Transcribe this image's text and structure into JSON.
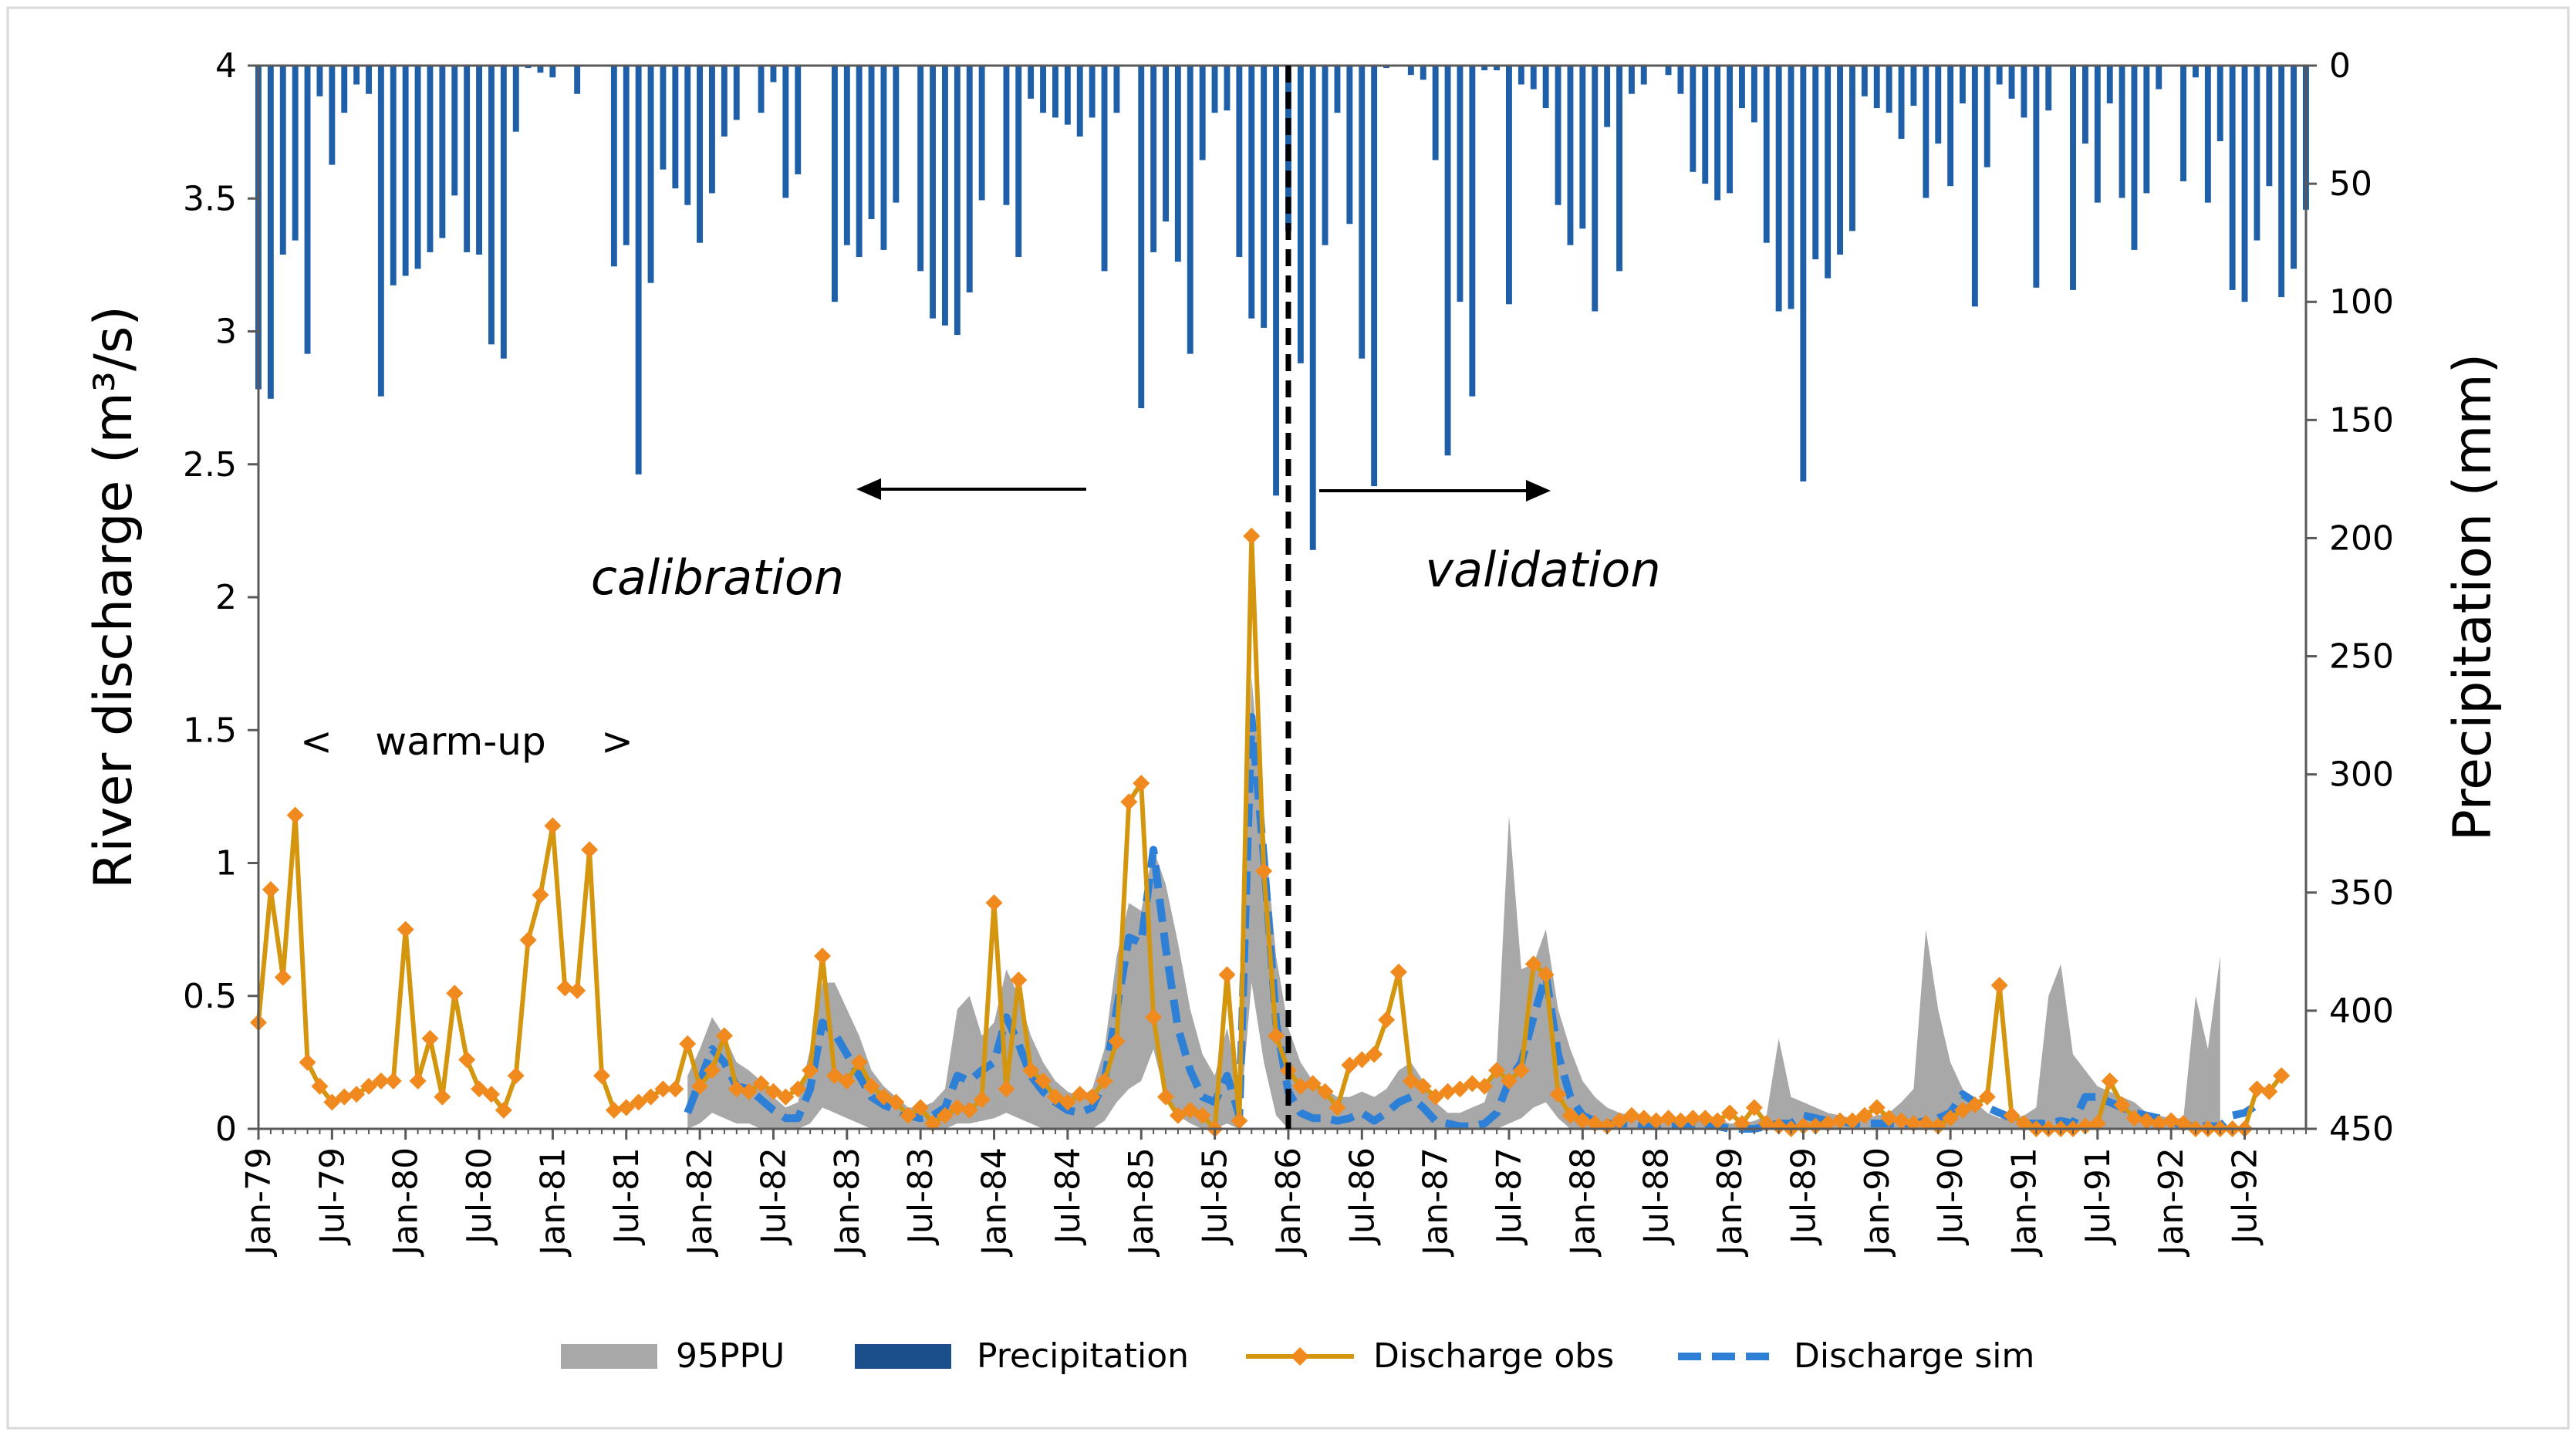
{
  "chart_data": {
    "type": "line",
    "xlabel": "",
    "ylabel_left": "River discharge (m³/s)",
    "ylabel_right": "Precipitation (mm)",
    "ylim_left": [
      0,
      4
    ],
    "ylim_right_inverted": [
      0,
      450
    ],
    "left_ticks": [
      "0",
      "0.5",
      "1",
      "1.5",
      "2",
      "2.5",
      "3",
      "3.5",
      "4"
    ],
    "right_ticks": [
      "0",
      "50",
      "100",
      "150",
      "200",
      "250",
      "300",
      "350",
      "400",
      "450"
    ],
    "x_tick_labels": [
      "Jan-79",
      "Jul-79",
      "Jan-80",
      "Jul-80",
      "Jan-81",
      "Jul-81",
      "Jan-82",
      "Jul-82",
      "Jan-83",
      "Jul-83",
      "Jan-84",
      "Jul-84",
      "Jan-85",
      "Jul-85",
      "Jan-86",
      "Jul-86",
      "Jan-87",
      "Jul-87",
      "Jan-88",
      "Jul-88",
      "Jan-89",
      "Jul-89",
      "Jan-90",
      "Jul-90",
      "Jan-91",
      "Jul-91",
      "Jan-92",
      "Jul-92"
    ],
    "n_months": 168,
    "start_month": "Jan-79",
    "grid": false,
    "legend_position": "bottom",
    "legend": [
      "95PPU",
      "Precipitation",
      "Discharge obs",
      "Discharge sim"
    ],
    "annotations": {
      "calibration": "calibration",
      "validation": "validation",
      "warmup": "warm-up",
      "warmup_left": "<",
      "warmup_right": ">"
    },
    "split_month": "Jan-86",
    "colors": {
      "precip": "#1f5fa8",
      "obs": "#d4960f",
      "obs_marker": "#f08a1e",
      "sim": "#2e7fd6",
      "band": "#a8a8a8",
      "legend_precip": "#1b4f8c"
    },
    "series": {
      "precipitation_mm": [
        137,
        141,
        80,
        74,
        122,
        13,
        42,
        20,
        8,
        12,
        140,
        93,
        89,
        86,
        79,
        73,
        55,
        79,
        80,
        118,
        124,
        28,
        1,
        3,
        5,
        0,
        12,
        0,
        0,
        85,
        76,
        173,
        92,
        44,
        52,
        59,
        75,
        54,
        30,
        23,
        0,
        20,
        7,
        56,
        46,
        0,
        0,
        100,
        76,
        81,
        65,
        78,
        58,
        0,
        87,
        107,
        110,
        114,
        96,
        57,
        0,
        59,
        81,
        14,
        20,
        22,
        25,
        30,
        22,
        87,
        20,
        0,
        145,
        79,
        66,
        83,
        122,
        40,
        20,
        19,
        81,
        107,
        111,
        182,
        70,
        126,
        205,
        76,
        20,
        67,
        124,
        178,
        1,
        0,
        4,
        6,
        40,
        165,
        100,
        140,
        2,
        2,
        101,
        8,
        10,
        18,
        59,
        76,
        69,
        104,
        26,
        87,
        12,
        8,
        0,
        4,
        12,
        45,
        50,
        57,
        54,
        18,
        24,
        75,
        104,
        103,
        176,
        82,
        90,
        80,
        70,
        13,
        18,
        20,
        31,
        17,
        56,
        33,
        51,
        16,
        102,
        43,
        8,
        14,
        22,
        94,
        19,
        0,
        95,
        33,
        58,
        16,
        56,
        78,
        54,
        10,
        0,
        49,
        5,
        58,
        32,
        95,
        100,
        74,
        51,
        98,
        86,
        61
      ],
      "discharge_obs": [
        0.4,
        0.9,
        0.57,
        1.18,
        0.25,
        0.16,
        0.1,
        0.12,
        0.13,
        0.16,
        0.18,
        0.18,
        0.75,
        0.18,
        0.34,
        0.12,
        0.51,
        0.26,
        0.15,
        0.13,
        0.07,
        0.2,
        0.71,
        0.88,
        1.14,
        0.53,
        0.52,
        1.05,
        0.2,
        0.07,
        0.08,
        0.1,
        0.12,
        0.15,
        0.15,
        0.32,
        0.16,
        0.22,
        0.35,
        0.15,
        0.14,
        0.17,
        0.14,
        0.12,
        0.15,
        0.22,
        0.65,
        0.2,
        0.18,
        0.25,
        0.16,
        0.12,
        0.1,
        0.05,
        0.08,
        0.02,
        0.05,
        0.08,
        0.07,
        0.11,
        0.85,
        0.15,
        0.56,
        0.22,
        0.18,
        0.12,
        0.1,
        0.13,
        0.12,
        0.18,
        0.33,
        1.23,
        1.3,
        0.42,
        0.12,
        0.05,
        0.07,
        0.05,
        0.0,
        0.58,
        0.03,
        2.23,
        0.97,
        0.35,
        0.22,
        0.16,
        0.17,
        0.14,
        0.08,
        0.24,
        0.26,
        0.28,
        0.41,
        0.59,
        0.18,
        0.16,
        0.12,
        0.14,
        0.15,
        0.17,
        0.16,
        0.22,
        0.18,
        0.22,
        0.62,
        0.58,
        0.13,
        0.05,
        0.03,
        0.02,
        0.01,
        0.03,
        0.05,
        0.04,
        0.03,
        0.04,
        0.03,
        0.04,
        0.04,
        0.03,
        0.06,
        0.02,
        0.08,
        0.02,
        0.01,
        0.0,
        0.01,
        0.01,
        0.02,
        0.03,
        0.03,
        0.05,
        0.08,
        0.04,
        0.03,
        0.02,
        0.02,
        0.01,
        0.04,
        0.07,
        0.09,
        0.12,
        0.54,
        0.05,
        0.02,
        0.0,
        0.0,
        0.0,
        0.0,
        0.01,
        0.02,
        0.18,
        0.09,
        0.04,
        0.03,
        0.02,
        0.03,
        0.02,
        0.0,
        0.0,
        0.0,
        0.0,
        0.0,
        0.15,
        0.14,
        0.2
      ],
      "discharge_sim": [
        null,
        null,
        null,
        null,
        null,
        null,
        null,
        null,
        null,
        null,
        null,
        null,
        null,
        null,
        null,
        null,
        null,
        null,
        null,
        null,
        null,
        null,
        null,
        null,
        null,
        null,
        null,
        null,
        null,
        null,
        null,
        null,
        null,
        null,
        null,
        0.06,
        0.18,
        0.3,
        0.25,
        0.16,
        0.15,
        0.11,
        0.07,
        0.04,
        0.04,
        0.15,
        0.4,
        0.36,
        0.28,
        0.2,
        0.12,
        0.09,
        0.07,
        0.05,
        0.04,
        0.05,
        0.08,
        0.2,
        0.18,
        0.22,
        0.25,
        0.42,
        0.32,
        0.2,
        0.14,
        0.1,
        0.07,
        0.06,
        0.08,
        0.18,
        0.45,
        0.72,
        0.7,
        1.05,
        0.68,
        0.38,
        0.22,
        0.12,
        0.1,
        0.2,
        0.05,
        1.55,
        1.02,
        0.4,
        0.14,
        0.06,
        0.04,
        0.04,
        0.03,
        0.04,
        0.06,
        0.03,
        0.06,
        0.1,
        0.12,
        0.08,
        0.03,
        0.02,
        0.01,
        0.01,
        0.02,
        0.06,
        0.18,
        0.25,
        0.42,
        0.58,
        0.28,
        0.12,
        0.05,
        0.03,
        0.02,
        0.02,
        0.02,
        0.01,
        0.01,
        0.01,
        0.01,
        0.01,
        0.02,
        0.01,
        0.0,
        0.0,
        0.0,
        0.01,
        0.02,
        0.02,
        0.05,
        0.04,
        0.03,
        0.03,
        0.02,
        0.02,
        0.02,
        0.02,
        0.02,
        0.02,
        0.03,
        0.04,
        0.06,
        0.13,
        0.1,
        0.08,
        0.06,
        0.04,
        0.02,
        0.02,
        0.02,
        0.03,
        0.02,
        0.12,
        0.12,
        0.1,
        0.08,
        0.06,
        0.05,
        0.04,
        0.03,
        0.01,
        0.01,
        0.01,
        0.01,
        0.05,
        0.06,
        0.09
      ],
      "band_upper": [
        null,
        null,
        null,
        null,
        null,
        null,
        null,
        null,
        null,
        null,
        null,
        null,
        null,
        null,
        null,
        null,
        null,
        null,
        null,
        null,
        null,
        null,
        null,
        null,
        null,
        null,
        null,
        null,
        null,
        null,
        null,
        null,
        null,
        null,
        null,
        0.2,
        0.3,
        0.42,
        0.35,
        0.25,
        0.22,
        0.18,
        0.12,
        0.08,
        0.1,
        0.3,
        0.55,
        0.55,
        0.45,
        0.35,
        0.22,
        0.16,
        0.12,
        0.08,
        0.08,
        0.1,
        0.15,
        0.45,
        0.5,
        0.35,
        0.4,
        0.6,
        0.5,
        0.35,
        0.25,
        0.18,
        0.14,
        0.12,
        0.15,
        0.3,
        0.65,
        0.85,
        0.82,
        1.05,
        0.92,
        0.7,
        0.45,
        0.28,
        0.2,
        0.38,
        0.15,
        1.7,
        1.15,
        0.65,
        0.38,
        0.25,
        0.18,
        0.15,
        0.12,
        0.12,
        0.14,
        0.12,
        0.15,
        0.22,
        0.25,
        0.18,
        0.1,
        0.06,
        0.06,
        0.08,
        0.1,
        0.25,
        1.18,
        0.6,
        0.62,
        0.75,
        0.45,
        0.3,
        0.18,
        0.12,
        0.08,
        0.06,
        0.05,
        0.04,
        0.04,
        0.04,
        0.04,
        0.04,
        0.05,
        0.04,
        0.02,
        0.02,
        0.03,
        0.05,
        0.34,
        0.12,
        0.1,
        0.08,
        0.06,
        0.05,
        0.04,
        0.04,
        0.05,
        0.06,
        0.1,
        0.15,
        0.75,
        0.45,
        0.25,
        0.15,
        0.1,
        0.06,
        0.04,
        0.04,
        0.05,
        0.08,
        0.5,
        0.62,
        0.28,
        0.22,
        0.16,
        0.14,
        0.12,
        0.1,
        0.06,
        0.05,
        0.04,
        0.04,
        0.5,
        0.3,
        0.65
      ],
      "band_lower": [
        null,
        null,
        null,
        null,
        null,
        null,
        null,
        null,
        null,
        null,
        null,
        null,
        null,
        null,
        null,
        null,
        null,
        null,
        null,
        null,
        null,
        null,
        null,
        null,
        null,
        null,
        null,
        null,
        null,
        null,
        null,
        null,
        null,
        null,
        null,
        0.0,
        0.02,
        0.06,
        0.04,
        0.02,
        0.02,
        0.0,
        0.0,
        0.0,
        0.0,
        0.02,
        0.08,
        0.06,
        0.04,
        0.02,
        0.0,
        0.0,
        0.0,
        0.0,
        0.0,
        0.0,
        0.0,
        0.02,
        0.02,
        0.03,
        0.04,
        0.06,
        0.04,
        0.02,
        0.0,
        0.0,
        0.0,
        0.0,
        0.0,
        0.03,
        0.1,
        0.15,
        0.18,
        0.3,
        0.12,
        0.05,
        0.02,
        0.0,
        0.0,
        0.02,
        0.0,
        0.55,
        0.25,
        0.05,
        0.0,
        0.0,
        0.0,
        0.0,
        0.0,
        0.0,
        0.0,
        0.0,
        0.0,
        0.0,
        0.0,
        0.0,
        0.0,
        0.0,
        0.0,
        0.0,
        0.0,
        0.0,
        0.02,
        0.04,
        0.08,
        0.1,
        0.04,
        0.0,
        0.0,
        0.0,
        0.0,
        0.0,
        0.0,
        0.0,
        0.0,
        0.0,
        0.0,
        0.0,
        0.0,
        0.0,
        0.0,
        0.0,
        0.0,
        0.0,
        0.0,
        0.0,
        0.0,
        0.0,
        0.0,
        0.0,
        0.0,
        0.0,
        0.0,
        0.0,
        0.0,
        0.0,
        0.0,
        0.0,
        0.0,
        0.0,
        0.0,
        0.0,
        0.0,
        0.0,
        0.0,
        0.0,
        0.0,
        0.0,
        0.0,
        0.0,
        0.0,
        0.0,
        0.0,
        0.0,
        0.0,
        0.0,
        0.0,
        0.0,
        0.0,
        0.0,
        0.0,
        0.0,
        0.0,
        0.0
      ]
    }
  }
}
